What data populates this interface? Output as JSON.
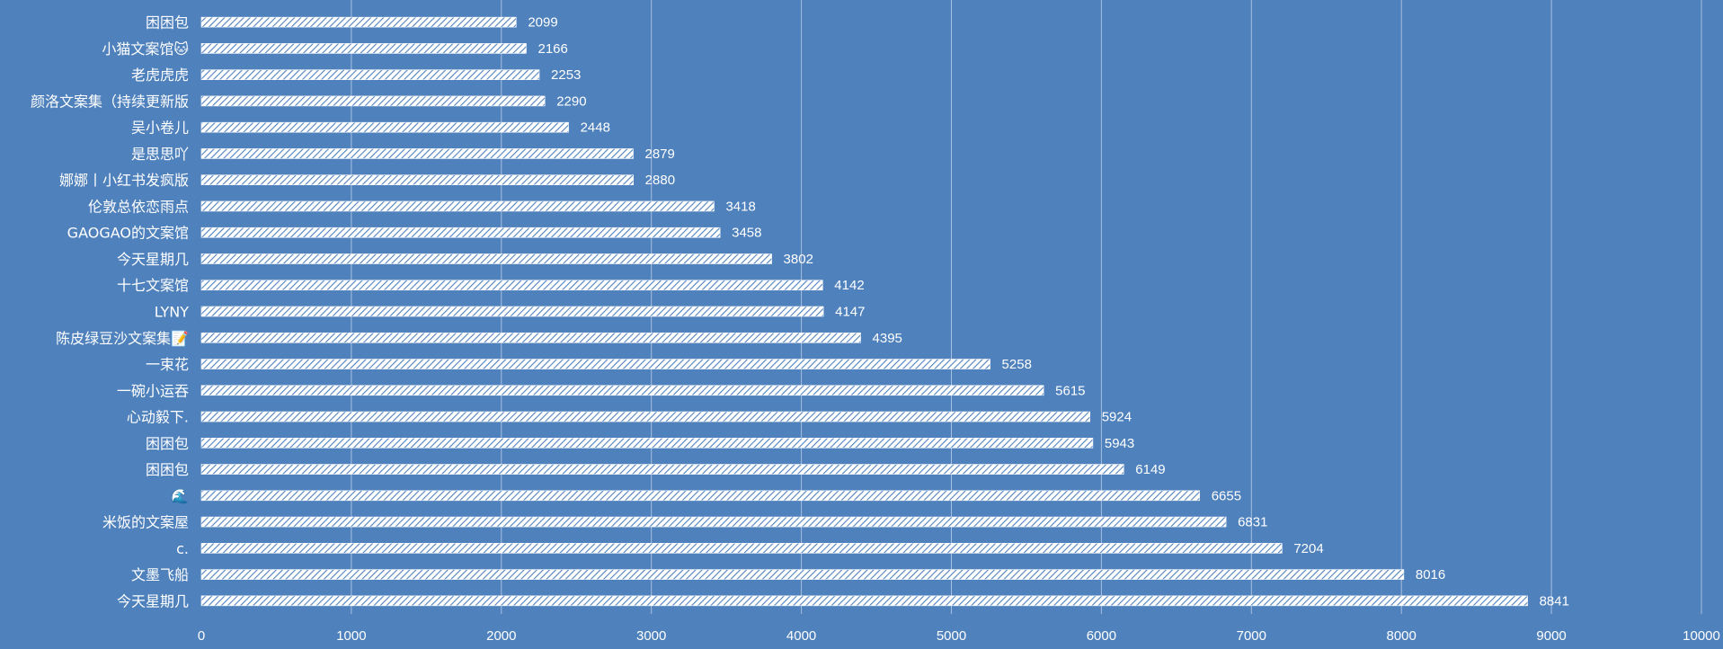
{
  "chart_data": {
    "type": "bar",
    "orientation": "horizontal",
    "categories": [
      "今天星期几",
      "文墨飞船",
      "c.",
      "米饭的文案屋",
      "🌊",
      "困困包",
      "困困包",
      "心动毅下.",
      "一碗小运吞",
      "一束花",
      "陈皮绿豆沙文案集📝",
      "LYNY",
      "十七文案馆",
      "今天星期几",
      "GAOGAO的文案馆",
      "伦敦总依恋雨点",
      "娜娜丨小红书发疯版",
      "是思思吖",
      "吴小卷儿",
      "颜洛文案集（持续更新版",
      "老虎虎虎",
      "小猫文案馆🐱",
      "困困包"
    ],
    "values": [
      8841,
      8016,
      7204,
      6831,
      6655,
      6149,
      5943,
      5924,
      5615,
      5258,
      4395,
      4147,
      4142,
      3802,
      3458,
      3418,
      2880,
      2879,
      2448,
      2290,
      2253,
      2166,
      2099
    ],
    "xlim": [
      0,
      10000
    ],
    "xticks": [
      "0",
      "1000",
      "2000",
      "3000",
      "4000",
      "5000",
      "6000",
      "7000",
      "8000",
      "9000",
      "10000"
    ],
    "grid": "vertical",
    "data_labels": true,
    "legend": "none",
    "title": "",
    "xlabel": "",
    "ylabel": ""
  },
  "colors": {
    "background": "#4f81bd",
    "bar_fill": "#ffffff",
    "bar_pattern": "#4f81bd",
    "gridline": "#a7bfe0",
    "text": "#ffffff"
  }
}
